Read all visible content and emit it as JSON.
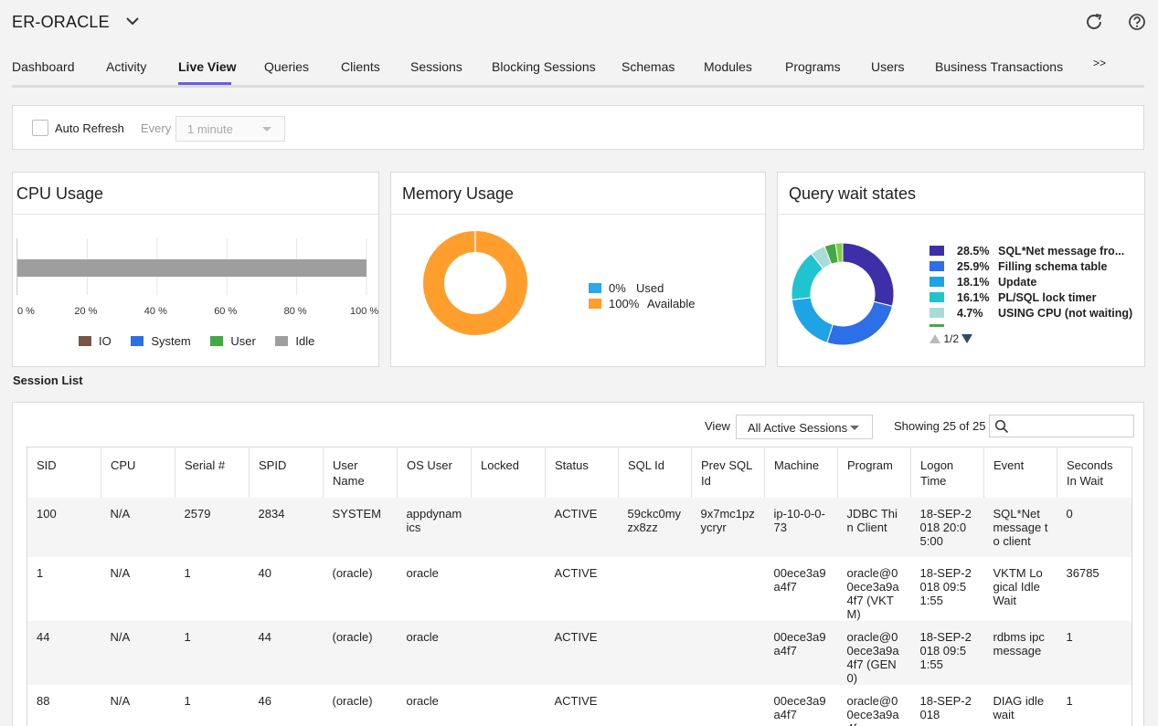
{
  "header": {
    "title": "ER-ORACLE",
    "refresh_icon": "refresh-icon",
    "help_icon": "help-icon"
  },
  "tabs": [
    {
      "label": "Dashboard"
    },
    {
      "label": "Activity"
    },
    {
      "label": "Live View",
      "active": true
    },
    {
      "label": "Queries"
    },
    {
      "label": "Clients"
    },
    {
      "label": "Sessions"
    },
    {
      "label": "Blocking Sessions"
    },
    {
      "label": "Schemas"
    },
    {
      "label": "Modules"
    },
    {
      "label": "Programs"
    },
    {
      "label": "Users"
    },
    {
      "label": "Business Transactions"
    },
    {
      "label": ">>"
    }
  ],
  "toolbar": {
    "auto_refresh_label": "Auto Refresh",
    "every_label": "Every",
    "interval_value": "1 minute"
  },
  "cpu": {
    "title": "CPU Usage",
    "ticks": [
      "0 %",
      "20 %",
      "40 %",
      "60 %",
      "80 %",
      "100 %"
    ],
    "legend": [
      {
        "label": "IO",
        "color": "#795548"
      },
      {
        "label": "System",
        "color": "#2c6fe6"
      },
      {
        "label": "User",
        "color": "#43a845"
      },
      {
        "label": "Idle",
        "color": "#9e9e9e"
      }
    ]
  },
  "memory": {
    "title": "Memory Usage",
    "legend": [
      {
        "pct": "0%",
        "label": "Used",
        "color": "#29a8f0"
      },
      {
        "pct": "100%",
        "label": "Available",
        "color": "#ff9e2c"
      }
    ]
  },
  "wait_states": {
    "title": "Query wait states",
    "legend": [
      {
        "pct": "28.5%",
        "label": "SQL*Net message fro...",
        "color": "#3d2fa8"
      },
      {
        "pct": "25.9%",
        "label": "Filling schema table",
        "color": "#2c6fe6"
      },
      {
        "pct": "18.1%",
        "label": "Update",
        "color": "#1ea3e6"
      },
      {
        "pct": "16.1%",
        "label": "PL/SQL lock timer",
        "color": "#1fc4cf"
      },
      {
        "pct": "4.7%",
        "label": "USING CPU (not waiting)",
        "color": "#a8dcd6"
      }
    ],
    "pager": "1/2"
  },
  "session_list": {
    "heading": "Session List",
    "view_label": "View",
    "view_value": "All Active Sessions",
    "showing": "Showing 25 of 25",
    "search_placeholder": "",
    "columns": [
      "SID",
      "CPU",
      "Serial #",
      "SPID",
      "User Name",
      "OS User",
      "Locked",
      "Status",
      "SQL Id",
      "Prev SQL Id",
      "Machine",
      "Program",
      "Logon Time",
      "Event",
      "Seconds In Wait"
    ],
    "rows": [
      [
        "100",
        "N/A",
        "2579",
        "2834",
        "SYSTEM",
        "appdynamics",
        "",
        "ACTIVE",
        "59ckc0myzx8zz",
        "9x7mc1pzycryr",
        "ip-10-0-0-73",
        "JDBC Thin Client",
        "18-SEP-2018 20:05:00",
        "SQL*Net message to client",
        "0"
      ],
      [
        "1",
        "N/A",
        "1",
        "40",
        "(oracle)",
        "oracle",
        "",
        "ACTIVE",
        "",
        "",
        "00ece3a9a4f7",
        "oracle@00ece3a9a4f7 (VKTM)",
        "18-SEP-2018 09:51:55",
        "VKTM Logical Idle Wait",
        "36785"
      ],
      [
        "44",
        "N/A",
        "1",
        "44",
        "(oracle)",
        "oracle",
        "",
        "ACTIVE",
        "",
        "",
        "00ece3a9a4f7",
        "oracle@00ece3a9a4f7 (GEN0)",
        "18-SEP-2018 09:51:55",
        "rdbms ipc message",
        "1"
      ],
      [
        "88",
        "N/A",
        "1",
        "46",
        "(oracle)",
        "oracle",
        "",
        "ACTIVE",
        "",
        "",
        "00ece3a9a4f7",
        "oracle@00ece3a9a4f",
        "18-SEP-2018",
        "DIAG idle wait",
        "1"
      ]
    ]
  },
  "chart_data": [
    {
      "type": "bar",
      "title": "CPU Usage",
      "orientation": "horizontal",
      "stacked": true,
      "xlim": [
        0,
        100
      ],
      "categories": [
        ""
      ],
      "series": [
        {
          "name": "IO",
          "values": [
            0
          ]
        },
        {
          "name": "System",
          "values": [
            0
          ]
        },
        {
          "name": "User",
          "values": [
            0
          ]
        },
        {
          "name": "Idle",
          "values": [
            100
          ]
        }
      ],
      "grid": true,
      "legend": "bottom"
    },
    {
      "type": "pie",
      "title": "Memory Usage",
      "donut": true,
      "categories": [
        "Used",
        "Available"
      ],
      "values": [
        0,
        100
      ],
      "legend": "right"
    },
    {
      "type": "pie",
      "title": "Query wait states",
      "donut": true,
      "categories": [
        "SQL*Net message fro...",
        "Filling schema table",
        "Update",
        "PL/SQL lock timer",
        "USING CPU (not waiting)"
      ],
      "values": [
        28.5,
        25.9,
        18.1,
        16.1,
        4.7
      ],
      "extra_slices": [
        {
          "color": "#43a845",
          "value": 3.5
        },
        {
          "color": "#7fcf3a",
          "value": 2.2
        }
      ],
      "legend": "right"
    }
  ]
}
